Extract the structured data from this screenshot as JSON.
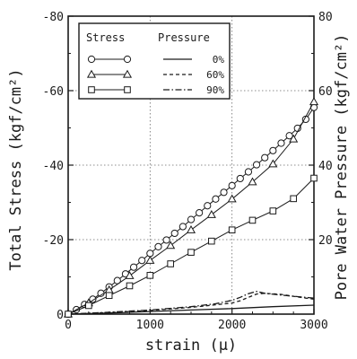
{
  "chart_data": {
    "type": "line",
    "xlabel": "strain (μ)",
    "ylabel_left": "Total Stress (kgf/cm²)",
    "ylabel_right": "Pore Water Pressure (kgf/cm²)",
    "xlim": [
      0,
      3000
    ],
    "ylim_left": [
      0,
      -80
    ],
    "ylim_right": [
      0,
      80
    ],
    "xticks": [
      0,
      1000,
      2000,
      3000
    ],
    "yticks_left": [
      0,
      -20,
      -40,
      -60,
      -80
    ],
    "yticks_right": [
      20,
      40,
      60,
      80
    ],
    "grid": true,
    "legend": {
      "placement": "top-left",
      "stress_header": "Stress",
      "pressure_header": "Pressure",
      "entries": [
        "0%",
        "60%",
        "90%"
      ]
    },
    "stress_series": [
      {
        "name": "0%",
        "marker": "circle",
        "x": [
          0,
          100,
          200,
          300,
          400,
          500,
          600,
          700,
          800,
          900,
          1000,
          1100,
          1200,
          1300,
          1400,
          1500,
          1600,
          1700,
          1800,
          1900,
          2000,
          2100,
          2200,
          2300,
          2400,
          2500,
          2600,
          2700,
          2800,
          2900,
          3000
        ],
        "y": [
          0,
          -1.2,
          -2.6,
          -4.0,
          -5.6,
          -7.3,
          -9.0,
          -10.8,
          -12.6,
          -14.4,
          -16.3,
          -18.1,
          -19.9,
          -21.7,
          -23.5,
          -25.4,
          -27.2,
          -29.1,
          -30.9,
          -32.7,
          -34.5,
          -36.4,
          -38.2,
          -40.1,
          -42.0,
          -43.9,
          -45.9,
          -47.9,
          -49.9,
          -52.3,
          -55.5
        ]
      },
      {
        "name": "60%",
        "marker": "triangle",
        "x": [
          0,
          250,
          500,
          750,
          1000,
          1250,
          1500,
          1750,
          2000,
          2250,
          2500,
          2750,
          3000
        ],
        "y": [
          0,
          -3.0,
          -6.5,
          -10.3,
          -14.4,
          -18.4,
          -22.6,
          -26.7,
          -30.9,
          -35.5,
          -40.3,
          -47.0,
          -57.0
        ]
      },
      {
        "name": "90%",
        "marker": "square",
        "x": [
          0,
          250,
          500,
          750,
          1000,
          1250,
          1500,
          1750,
          2000,
          2250,
          2500,
          2750,
          3000
        ],
        "y": [
          0,
          -2.3,
          -5.0,
          -7.6,
          -10.4,
          -13.5,
          -16.6,
          -19.6,
          -22.6,
          -25.2,
          -27.7,
          -31.0,
          -36.5
        ]
      }
    ],
    "pressure_series": [
      {
        "name": "0%",
        "style": "solid",
        "x": [
          0,
          500,
          1000,
          1500,
          2000,
          2500,
          3000
        ],
        "y": [
          0,
          0.3,
          0.7,
          1.1,
          1.5,
          2.0,
          2.4
        ]
      },
      {
        "name": "60%",
        "style": "dashed",
        "x": [
          0,
          500,
          1000,
          1500,
          1800,
          2000,
          2100,
          2200,
          2300,
          2400,
          2600,
          2800,
          3000
        ],
        "y": [
          0,
          0.4,
          1.0,
          1.8,
          2.5,
          3.0,
          3.6,
          4.5,
          5.4,
          5.6,
          5.3,
          4.6,
          4.0
        ]
      },
      {
        "name": "90%",
        "style": "dashdot",
        "x": [
          0,
          500,
          1000,
          1500,
          1800,
          2000,
          2100,
          2200,
          2300,
          2400,
          2600,
          2800,
          3000
        ],
        "y": [
          0,
          0.5,
          1.1,
          2.0,
          2.8,
          3.7,
          4.5,
          5.5,
          6.1,
          5.6,
          5.1,
          4.7,
          4.3
        ]
      }
    ]
  }
}
